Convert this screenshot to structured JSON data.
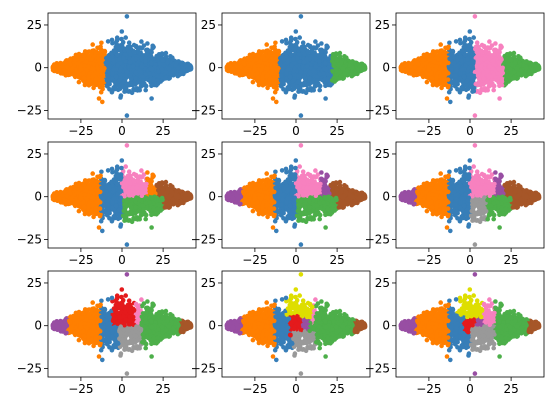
{
  "figure": {
    "layout": "3x3 grid of scatter subplots",
    "colors": {
      "blue": "#377eb8",
      "orange": "#ff7f00",
      "green": "#4daf4a",
      "pink": "#f781bf",
      "brown": "#a65628",
      "purple": "#984ea3",
      "gray": "#999999",
      "red": "#e41a1c",
      "yellow": "#dede00"
    }
  },
  "chart_data": [
    {
      "type": "scatter",
      "title": "",
      "xlabel": "",
      "ylabel": "",
      "grid": false,
      "xlim": [
        -45,
        45
      ],
      "ylim": [
        -30,
        32
      ],
      "xticks": [
        -25,
        0,
        25
      ],
      "yticks": [
        -25,
        0,
        25
      ],
      "xtick_labels": [
        "−25",
        "0",
        "25"
      ],
      "ytick_labels": [
        "−25",
        "0",
        "25"
      ],
      "show_xticklabels": true,
      "show_yticklabels": true,
      "regions": [
        {
          "color": "orange",
          "x": [
            -42,
            -10
          ]
        },
        {
          "color": "blue",
          "x": [
            -10,
            42
          ]
        }
      ]
    },
    {
      "type": "scatter",
      "title": "",
      "xlabel": "",
      "ylabel": "",
      "grid": false,
      "xlim": [
        -45,
        45
      ],
      "ylim": [
        -30,
        32
      ],
      "xticks": [
        -25,
        0,
        25
      ],
      "yticks": [
        -25,
        0,
        25
      ],
      "xtick_labels": [
        "−25",
        "0",
        "25"
      ],
      "ytick_labels": [
        "−25",
        "0",
        "25"
      ],
      "show_xticklabels": true,
      "show_yticklabels": true,
      "regions": [
        {
          "color": "orange",
          "x": [
            -42,
            -10
          ]
        },
        {
          "color": "blue",
          "x": [
            -10,
            22
          ]
        },
        {
          "color": "green",
          "x": [
            22,
            42
          ]
        }
      ]
    },
    {
      "type": "scatter",
      "title": "",
      "xlabel": "",
      "ylabel": "",
      "grid": false,
      "xlim": [
        -45,
        45
      ],
      "ylim": [
        -30,
        32
      ],
      "xticks": [
        -25,
        0,
        25
      ],
      "yticks": [
        -25,
        0,
        25
      ],
      "xtick_labels": [
        "−25",
        "0",
        "25"
      ],
      "ytick_labels": [
        "−25",
        "0",
        "25"
      ],
      "show_xticklabels": true,
      "show_yticklabels": true,
      "regions": [
        {
          "color": "orange",
          "x": [
            -42,
            -13
          ]
        },
        {
          "color": "blue",
          "x": [
            -13,
            3
          ]
        },
        {
          "color": "pink",
          "x": [
            3,
            20
          ]
        },
        {
          "color": "green",
          "x": [
            20,
            42
          ]
        }
      ]
    },
    {
      "type": "scatter",
      "title": "",
      "xlabel": "",
      "ylabel": "",
      "grid": false,
      "xlim": [
        -45,
        45
      ],
      "ylim": [
        -30,
        32
      ],
      "xticks": [
        -25,
        0,
        25
      ],
      "yticks": [
        -25,
        0,
        25
      ],
      "xtick_labels": [
        "−25",
        "0",
        "25"
      ],
      "ytick_labels": [
        "−25",
        "0",
        "25"
      ],
      "show_xticklabels": true,
      "show_yticklabels": true,
      "regions": [
        {
          "color": "orange",
          "x": [
            -42,
            -13
          ]
        },
        {
          "color": "blue",
          "x": [
            -13,
            0
          ]
        },
        {
          "color": "pink",
          "x": [
            0,
            15
          ],
          "y": [
            0,
            30
          ]
        },
        {
          "color": "green",
          "x": [
            0,
            25
          ],
          "y": [
            -25,
            0
          ]
        },
        {
          "color": "brown",
          "x": [
            25,
            42
          ]
        }
      ]
    },
    {
      "type": "scatter",
      "title": "",
      "xlabel": "",
      "ylabel": "",
      "grid": false,
      "xlim": [
        -45,
        45
      ],
      "ylim": [
        -30,
        32
      ],
      "xticks": [
        -25,
        0,
        25
      ],
      "yticks": [
        -25,
        0,
        25
      ],
      "xtick_labels": [
        "−25",
        "0",
        "25"
      ],
      "ytick_labels": [
        "−25",
        "0",
        "25"
      ],
      "show_xticklabels": true,
      "show_yticklabels": true,
      "regions": [
        {
          "color": "purple",
          "x": [
            -42,
            -33
          ]
        },
        {
          "color": "orange",
          "x": [
            -33,
            -13
          ]
        },
        {
          "color": "blue",
          "x": [
            -13,
            0
          ]
        },
        {
          "color": "pink",
          "x": [
            0,
            15
          ],
          "y": [
            0,
            30
          ]
        },
        {
          "color": "green",
          "x": [
            0,
            25
          ],
          "y": [
            -25,
            0
          ]
        },
        {
          "color": "brown",
          "x": [
            25,
            42
          ]
        }
      ]
    },
    {
      "type": "scatter",
      "title": "",
      "xlabel": "",
      "ylabel": "",
      "grid": false,
      "xlim": [
        -45,
        45
      ],
      "ylim": [
        -30,
        32
      ],
      "xticks": [
        -25,
        0,
        25
      ],
      "yticks": [
        -25,
        0,
        25
      ],
      "xtick_labels": [
        "−25",
        "0",
        "25"
      ],
      "ytick_labels": [
        "−25",
        "0",
        "25"
      ],
      "show_xticklabels": true,
      "show_yticklabels": true,
      "regions": [
        {
          "color": "purple",
          "x": [
            -42,
            -33
          ]
        },
        {
          "color": "orange",
          "x": [
            -33,
            -13
          ]
        },
        {
          "color": "blue",
          "x": [
            -13,
            0
          ]
        },
        {
          "color": "pink",
          "x": [
            0,
            15
          ],
          "y": [
            0,
            30
          ]
        },
        {
          "color": "gray",
          "x": [
            0,
            10
          ],
          "y": [
            -28,
            0
          ]
        },
        {
          "color": "green",
          "x": [
            10,
            25
          ],
          "y": [
            -25,
            0
          ]
        },
        {
          "color": "brown",
          "x": [
            25,
            42
          ]
        }
      ]
    },
    {
      "type": "scatter",
      "title": "",
      "xlabel": "",
      "ylabel": "",
      "grid": false,
      "xlim": [
        -45,
        45
      ],
      "ylim": [
        -30,
        32
      ],
      "xticks": [
        -25,
        0,
        25
      ],
      "yticks": [
        -25,
        0,
        25
      ],
      "xtick_labels": [
        "−25",
        "0",
        "25"
      ],
      "ytick_labels": [
        "−25",
        "0",
        "25"
      ],
      "show_xticklabels": true,
      "show_yticklabels": true,
      "regions": [
        {
          "color": "purple",
          "x": [
            -42,
            -33
          ]
        },
        {
          "color": "orange",
          "x": [
            -33,
            -13
          ]
        },
        {
          "color": "blue",
          "x": [
            -13,
            -2
          ]
        },
        {
          "color": "red",
          "x": [
            -6,
            8
          ],
          "y": [
            0,
            25
          ]
        },
        {
          "color": "pink",
          "x": [
            8,
            22
          ],
          "y": [
            0,
            30
          ]
        },
        {
          "color": "gray",
          "x": [
            -2,
            12
          ],
          "y": [
            -28,
            0
          ]
        },
        {
          "color": "green",
          "x": [
            12,
            35
          ]
        },
        {
          "color": "brown",
          "x": [
            35,
            42
          ]
        }
      ]
    },
    {
      "type": "scatter",
      "title": "",
      "xlabel": "",
      "ylabel": "",
      "grid": false,
      "xlim": [
        -45,
        45
      ],
      "ylim": [
        -30,
        32
      ],
      "xticks": [
        -25,
        0,
        25
      ],
      "yticks": [
        -25,
        0,
        25
      ],
      "xtick_labels": [
        "−25",
        "0",
        "25"
      ],
      "ytick_labels": [
        "−25",
        "0",
        "25"
      ],
      "show_xticklabels": true,
      "show_yticklabels": true,
      "regions": [
        {
          "color": "purple",
          "x": [
            -42,
            -33
          ]
        },
        {
          "color": "orange",
          "x": [
            -33,
            -13
          ]
        },
        {
          "color": "blue",
          "x": [
            -13,
            -2
          ]
        },
        {
          "color": "yellow",
          "x": [
            -6,
            10
          ],
          "y": [
            5,
            30
          ]
        },
        {
          "color": "red",
          "x": [
            -4,
            4
          ],
          "y": [
            -6,
            6
          ]
        },
        {
          "color": "pink",
          "x": [
            10,
            22
          ],
          "y": [
            0,
            30
          ]
        },
        {
          "color": "gray",
          "x": [
            -2,
            12
          ],
          "y": [
            -28,
            -3
          ]
        },
        {
          "color": "green",
          "x": [
            12,
            35
          ]
        },
        {
          "color": "brown",
          "x": [
            35,
            42
          ]
        }
      ]
    },
    {
      "type": "scatter",
      "title": "",
      "xlabel": "",
      "ylabel": "",
      "grid": false,
      "xlim": [
        -45,
        45
      ],
      "ylim": [
        -30,
        32
      ],
      "xticks": [
        -25,
        0,
        25
      ],
      "yticks": [
        -25,
        0,
        25
      ],
      "xtick_labels": [
        "−25",
        "0",
        "25"
      ],
      "ytick_labels": [
        "−25",
        "0",
        "25"
      ],
      "show_xticklabels": true,
      "show_yticklabels": true,
      "regions": [
        {
          "color": "purple",
          "x": [
            -42,
            -33
          ]
        },
        {
          "color": "orange",
          "x": [
            -33,
            -13
          ]
        },
        {
          "color": "blue",
          "x": [
            -13,
            -2
          ]
        },
        {
          "color": "yellow",
          "x": [
            -8,
            8
          ],
          "y": [
            5,
            28
          ]
        },
        {
          "color": "red",
          "x": [
            -4,
            4
          ],
          "y": [
            -4,
            4
          ]
        },
        {
          "color": "pink",
          "x": [
            8,
            22
          ],
          "y": [
            0,
            30
          ]
        },
        {
          "color": "gray",
          "x": [
            0,
            15
          ],
          "y": [
            -25,
            0
          ]
        },
        {
          "color": "green",
          "x": [
            15,
            35
          ]
        },
        {
          "color": "brown",
          "x": [
            35,
            42
          ]
        }
      ]
    }
  ]
}
